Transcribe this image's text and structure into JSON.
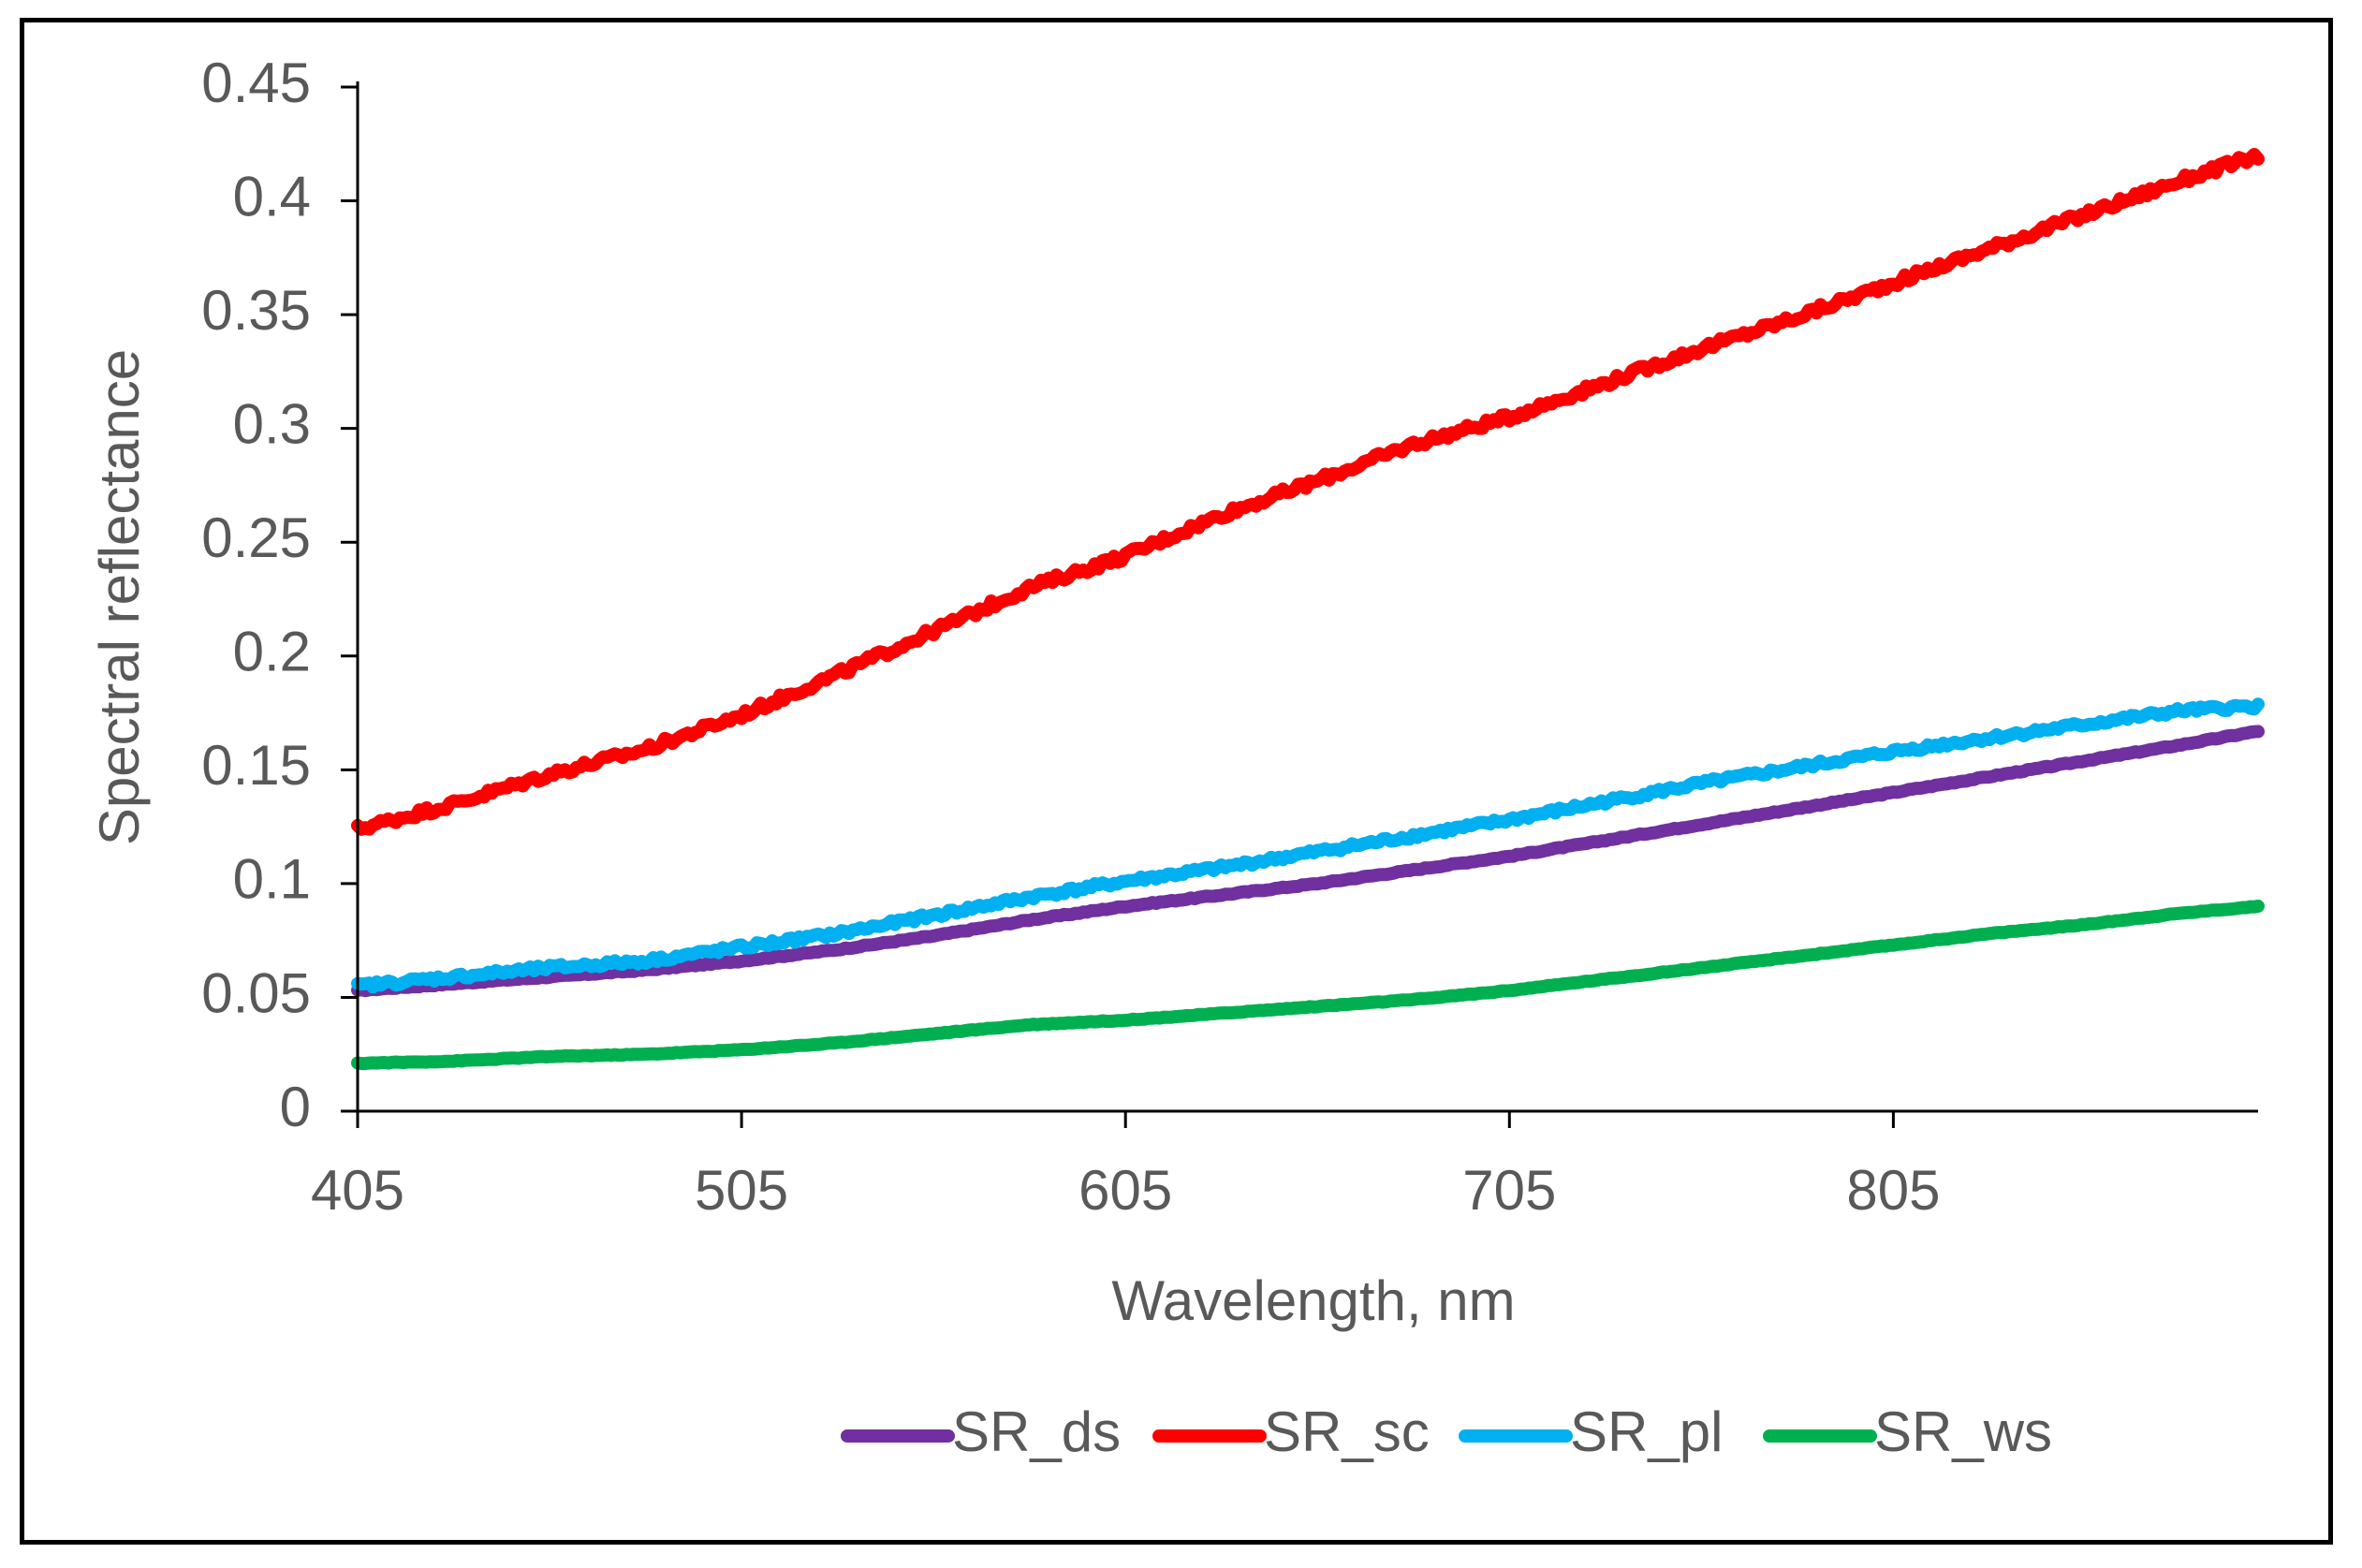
{
  "chart_data": {
    "type": "line",
    "title": "",
    "xlabel": "Wavelength, nm",
    "ylabel": "Spectral reflectance",
    "xlim": [
      405,
      900
    ],
    "ylim": [
      0,
      0.45
    ],
    "x_ticks": [
      "405",
      "505",
      "605",
      "705",
      "805"
    ],
    "x_tick_values": [
      405,
      505,
      605,
      705,
      805
    ],
    "y_ticks": [
      "0",
      "0.05",
      "0.1",
      "0.15",
      "0.2",
      "0.25",
      "0.3",
      "0.35",
      "0.4",
      "0.45"
    ],
    "y_tick_values": [
      0,
      0.05,
      0.1,
      0.15,
      0.2,
      0.25,
      0.3,
      0.35,
      0.4,
      0.45
    ],
    "grid": false,
    "legend_position": "bottom",
    "x": [
      405,
      430,
      455,
      480,
      505,
      530,
      555,
      580,
      605,
      630,
      655,
      680,
      705,
      730,
      755,
      780,
      805,
      830,
      855,
      880,
      900
    ],
    "series": [
      {
        "name": "SR_ds",
        "color": "#7030A0",
        "values": [
          0.053,
          0.056,
          0.059,
          0.062,
          0.066,
          0.071,
          0.077,
          0.084,
          0.09,
          0.095,
          0.1,
          0.106,
          0.112,
          0.119,
          0.126,
          0.133,
          0.14,
          0.147,
          0.154,
          0.161,
          0.167
        ]
      },
      {
        "name": "SR_sc",
        "color": "#FF0000",
        "values": [
          0.124,
          0.135,
          0.148,
          0.159,
          0.174,
          0.192,
          0.211,
          0.23,
          0.244,
          0.262,
          0.277,
          0.293,
          0.305,
          0.32,
          0.335,
          0.349,
          0.364,
          0.379,
          0.394,
          0.409,
          0.42
        ]
      },
      {
        "name": "SR_pl",
        "color": "#00B0F0",
        "values": [
          0.055,
          0.059,
          0.063,
          0.066,
          0.072,
          0.078,
          0.086,
          0.094,
          0.101,
          0.107,
          0.114,
          0.121,
          0.128,
          0.136,
          0.144,
          0.151,
          0.158,
          0.164,
          0.17,
          0.176,
          0.178
        ]
      },
      {
        "name": "SR_ws",
        "color": "#00B050",
        "values": [
          0.021,
          0.022,
          0.024,
          0.025,
          0.027,
          0.03,
          0.034,
          0.038,
          0.04,
          0.043,
          0.046,
          0.049,
          0.053,
          0.058,
          0.063,
          0.068,
          0.073,
          0.078,
          0.082,
          0.087,
          0.09
        ]
      }
    ]
  }
}
